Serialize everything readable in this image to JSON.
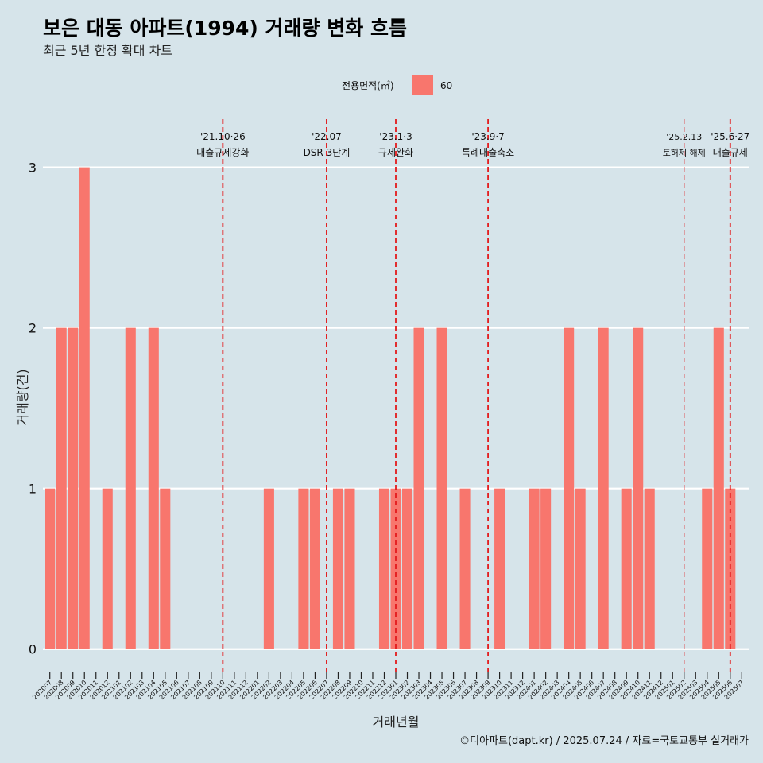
{
  "header": {
    "title": "보은 대동 아파트(1994) 거래량 변화 흐름",
    "subtitle": "최근 5년 한정 확대 차트"
  },
  "legend": {
    "title": "전용면적(㎡)",
    "items": [
      {
        "label": "60",
        "color": "#f8766d"
      }
    ]
  },
  "caption": "©디아파트(dapt.kr) / 2025.07.24 / 자료=국토교통부 실거래가",
  "colors": {
    "background": "#d6e4ea",
    "bar": "#f8766d",
    "gridline": "#ffffff",
    "event_line": "#e31a1c"
  },
  "chart_data": {
    "type": "bar",
    "xlabel": "거래년월",
    "ylabel": "거래량(건)",
    "ylim": [
      0,
      3
    ],
    "yticks": [
      0,
      1,
      2,
      3
    ],
    "legend_position": "top",
    "grid": "horizontal-major",
    "categories": [
      "202007",
      "202008",
      "202009",
      "202010",
      "202011",
      "202012",
      "202101",
      "202102",
      "202103",
      "202104",
      "202105",
      "202106",
      "202107",
      "202108",
      "202109",
      "202110",
      "202111",
      "202112",
      "202201",
      "202202",
      "202203",
      "202204",
      "202205",
      "202206",
      "202207",
      "202208",
      "202209",
      "202210",
      "202211",
      "202212",
      "202301",
      "202302",
      "202303",
      "202304",
      "202305",
      "202306",
      "202307",
      "202308",
      "202309",
      "202310",
      "202311",
      "202312",
      "202401",
      "202402",
      "202403",
      "202404",
      "202405",
      "202406",
      "202407",
      "202408",
      "202409",
      "202410",
      "202411",
      "202412",
      "202501",
      "202502",
      "202503",
      "202504",
      "202505",
      "202506",
      "202507"
    ],
    "series": [
      {
        "name": "60",
        "values": [
          1,
          2,
          2,
          3,
          0,
          1,
          0,
          2,
          0,
          2,
          1,
          0,
          0,
          0,
          0,
          0,
          0,
          0,
          0,
          1,
          0,
          0,
          1,
          1,
          0,
          1,
          1,
          0,
          0,
          1,
          1,
          1,
          2,
          0,
          2,
          0,
          1,
          0,
          0,
          1,
          0,
          0,
          1,
          1,
          0,
          2,
          1,
          0,
          2,
          0,
          1,
          2,
          1,
          0,
          0,
          0,
          0,
          1,
          2,
          1,
          0
        ]
      }
    ],
    "annotations": [
      {
        "x": "202110",
        "date": "'21.10·26",
        "label": "대출규제강화"
      },
      {
        "x": "202207",
        "date": "'22.07",
        "label": "DSR 3단계"
      },
      {
        "x": "202301",
        "date": "'23.1·3",
        "label": "규제완화"
      },
      {
        "x": "202309",
        "date": "'23.9·7",
        "label": "특례대출축소"
      },
      {
        "x": "202502",
        "date": "'25.2.13",
        "label": "토허제 해제"
      },
      {
        "x": "202506",
        "date": "'25.6·27",
        "label": "대출규제"
      }
    ]
  }
}
